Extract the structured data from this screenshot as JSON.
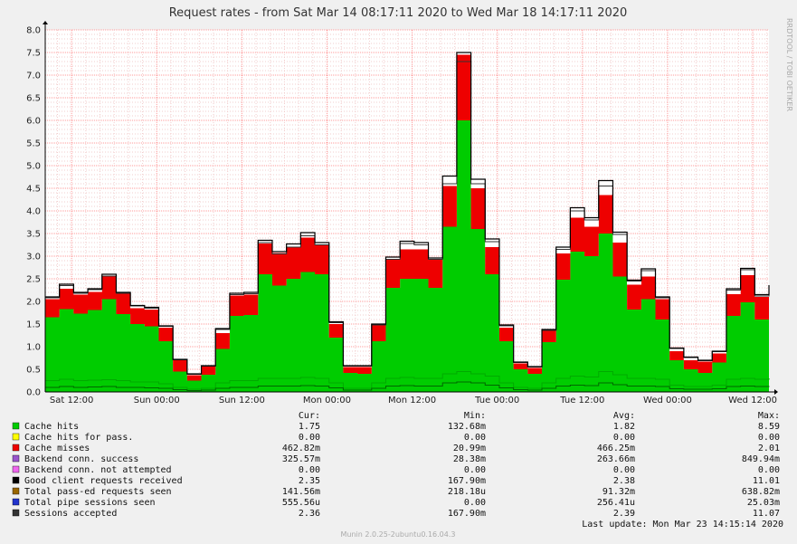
{
  "chart_data": {
    "type": "area",
    "title": "Request rates - from Sat Mar 14 08:17:11 2020 to Wed Mar 18 14:17:11 2020",
    "side_label": "RRDTOOL / TOBI OETIKER",
    "ylim": [
      0,
      8
    ],
    "y_ticks": [
      "0.0",
      "0.5",
      "1.0",
      "1.5",
      "2.0",
      "2.5",
      "3.0",
      "3.5",
      "4.0",
      "4.5",
      "5.0",
      "5.5",
      "6.0",
      "6.5",
      "7.0",
      "7.5",
      "8.0"
    ],
    "x_ticks": [
      {
        "label": "Sat 12:00",
        "hour": 12
      },
      {
        "label": "Sun 00:00",
        "hour": 24
      },
      {
        "label": "Sun 12:00",
        "hour": 36
      },
      {
        "label": "Mon 00:00",
        "hour": 48
      },
      {
        "label": "Mon 12:00",
        "hour": 60
      },
      {
        "label": "Tue 00:00",
        "hour": 72
      },
      {
        "label": "Tue 12:00",
        "hour": 84
      },
      {
        "label": "Wed 00:00",
        "hour": 96
      },
      {
        "label": "Wed 12:00",
        "hour": 108
      }
    ],
    "x_start_hour": 8.286,
    "x_end_hour": 110.286,
    "bin_hours": 2,
    "series": [
      {
        "name": "Cache hits",
        "color": "#00cc00",
        "values": [
          1.65,
          1.83,
          1.73,
          1.81,
          2.05,
          1.72,
          1.5,
          1.45,
          1.12,
          0.45,
          0.25,
          0.38,
          0.95,
          1.68,
          1.7,
          2.6,
          2.35,
          2.5,
          2.65,
          2.6,
          1.2,
          0.42,
          0.4,
          1.12,
          2.3,
          2.5,
          2.5,
          2.3,
          3.65,
          6.0,
          3.6,
          2.6,
          1.12,
          0.5,
          0.4,
          1.1,
          2.48,
          3.1,
          3.0,
          3.5,
          2.55,
          1.82,
          2.05,
          1.6,
          0.7,
          0.5,
          0.42,
          0.65,
          1.68,
          1.98,
          1.6,
          1.75
        ]
      },
      {
        "name": "Cache misses",
        "color": "#ee0000",
        "values": [
          0.4,
          0.45,
          0.42,
          0.4,
          0.5,
          0.45,
          0.35,
          0.37,
          0.3,
          0.25,
          0.12,
          0.18,
          0.35,
          0.45,
          0.45,
          0.68,
          0.72,
          0.7,
          0.76,
          0.66,
          0.3,
          0.13,
          0.15,
          0.35,
          0.63,
          0.65,
          0.65,
          0.62,
          0.9,
          1.45,
          0.9,
          0.6,
          0.3,
          0.13,
          0.13,
          0.25,
          0.58,
          0.75,
          0.65,
          0.85,
          0.75,
          0.55,
          0.5,
          0.45,
          0.2,
          0.2,
          0.25,
          0.2,
          0.48,
          0.6,
          0.5,
          0.45
        ]
      },
      {
        "name": "Good client requests received",
        "color": "#000000",
        "values": [
          2.1,
          2.38,
          2.2,
          2.28,
          2.6,
          2.2,
          1.91,
          1.87,
          1.46,
          0.72,
          0.4,
          0.58,
          1.4,
          2.18,
          2.2,
          3.35,
          3.1,
          3.27,
          3.52,
          3.3,
          1.55,
          0.58,
          0.58,
          1.5,
          2.98,
          3.33,
          3.3,
          2.96,
          4.77,
          7.5,
          4.7,
          3.38,
          1.48,
          0.66,
          0.56,
          1.38,
          3.2,
          4.07,
          3.85,
          4.67,
          3.53,
          2.47,
          2.72,
          2.1,
          0.97,
          0.77,
          0.7,
          0.9,
          2.28,
          2.73,
          2.15,
          2.36
        ]
      },
      {
        "name": "Sessions accepted",
        "color": "#333333",
        "values": [
          2.08,
          2.35,
          2.18,
          2.26,
          2.56,
          2.18,
          1.9,
          1.85,
          1.45,
          0.71,
          0.39,
          0.57,
          1.38,
          2.15,
          2.17,
          3.3,
          3.05,
          3.2,
          3.45,
          3.25,
          1.53,
          0.57,
          0.57,
          1.48,
          2.93,
          3.28,
          3.25,
          2.93,
          4.6,
          7.3,
          4.6,
          3.32,
          1.46,
          0.65,
          0.55,
          1.36,
          3.15,
          4.0,
          3.8,
          4.55,
          3.48,
          2.45,
          2.68,
          2.08,
          0.96,
          0.76,
          0.69,
          0.89,
          2.25,
          2.7,
          2.12,
          2.34
        ]
      },
      {
        "name": "Backend conn. success",
        "color": "#00aa00",
        "values": [
          0.25,
          0.28,
          0.25,
          0.26,
          0.27,
          0.25,
          0.22,
          0.22,
          0.18,
          0.1,
          0.06,
          0.08,
          0.2,
          0.25,
          0.25,
          0.3,
          0.3,
          0.3,
          0.32,
          0.3,
          0.2,
          0.08,
          0.08,
          0.2,
          0.3,
          0.32,
          0.3,
          0.3,
          0.4,
          0.45,
          0.4,
          0.35,
          0.2,
          0.1,
          0.08,
          0.2,
          0.3,
          0.35,
          0.33,
          0.45,
          0.38,
          0.3,
          0.3,
          0.28,
          0.15,
          0.12,
          0.12,
          0.15,
          0.28,
          0.3,
          0.28,
          0.3
        ]
      },
      {
        "name": "Total pass-ed requests seen",
        "color": "#006600",
        "values": [
          0.1,
          0.12,
          0.1,
          0.11,
          0.12,
          0.1,
          0.1,
          0.09,
          0.08,
          0.05,
          0.03,
          0.04,
          0.08,
          0.1,
          0.1,
          0.13,
          0.13,
          0.13,
          0.14,
          0.13,
          0.09,
          0.04,
          0.04,
          0.08,
          0.13,
          0.14,
          0.13,
          0.13,
          0.2,
          0.22,
          0.2,
          0.15,
          0.09,
          0.05,
          0.04,
          0.08,
          0.13,
          0.15,
          0.14,
          0.2,
          0.16,
          0.13,
          0.13,
          0.12,
          0.07,
          0.06,
          0.06,
          0.07,
          0.12,
          0.13,
          0.12,
          0.13
        ]
      }
    ]
  },
  "legend": {
    "headers": {
      "cur": "Cur:",
      "min": "Min:",
      "avg": "Avg:",
      "max": "Max:"
    },
    "rows": [
      {
        "name": "Cache hits",
        "color": "#00cc00",
        "cur": "1.75",
        "min": "132.68m",
        "avg": "1.82",
        "max": "8.59"
      },
      {
        "name": "Cache hits for pass.",
        "color": "#ffff00",
        "cur": "0.00",
        "min": "0.00",
        "avg": "0.00",
        "max": "0.00"
      },
      {
        "name": "Cache misses",
        "color": "#ee0000",
        "cur": "462.82m",
        "min": "20.99m",
        "avg": "466.25m",
        "max": "2.01"
      },
      {
        "name": "Backend conn. success",
        "color": "#9955cc",
        "cur": "325.57m",
        "min": "28.38m",
        "avg": "263.66m",
        "max": "849.94m"
      },
      {
        "name": "Backend conn. not attempted",
        "color": "#ee66ee",
        "cur": "0.00",
        "min": "0.00",
        "avg": "0.00",
        "max": "0.00"
      },
      {
        "name": "Good client requests received",
        "color": "#000000",
        "cur": "2.35",
        "min": "167.90m",
        "avg": "2.38",
        "max": "11.01"
      },
      {
        "name": "Total pass-ed requests seen",
        "color": "#996600",
        "cur": "141.56m",
        "min": "218.18u",
        "avg": "91.32m",
        "max": "638.82m"
      },
      {
        "name": "Total pipe sessions seen",
        "color": "#2233cc",
        "cur": "555.56u",
        "min": "0.00",
        "avg": "256.41u",
        "max": "25.03m"
      },
      {
        "name": "Sessions accepted",
        "color": "#333333",
        "cur": "2.36",
        "min": "167.90m",
        "avg": "2.39",
        "max": "11.07"
      }
    ]
  },
  "last_update": "Last update: Mon Mar 23 14:15:14 2020",
  "footer": "Munin 2.0.25-2ubuntu0.16.04.3"
}
